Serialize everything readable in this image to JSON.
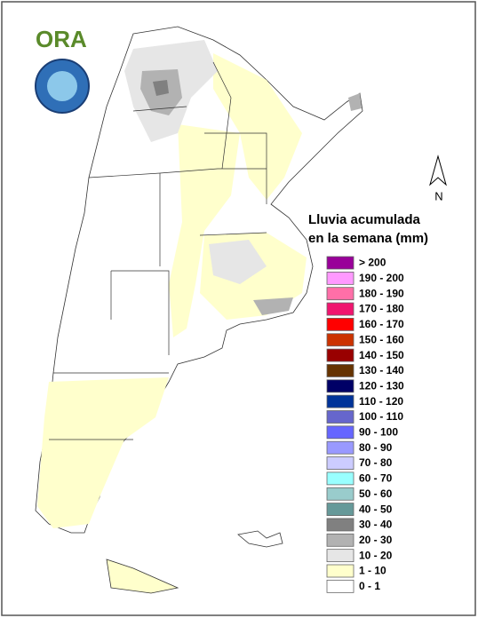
{
  "logo": "ORA",
  "north": "N",
  "legend": {
    "title": [
      "Lluvia acumulada",
      "en la semana (mm)"
    ],
    "items": [
      {
        "label": "> 200",
        "color": "#990099"
      },
      {
        "label": "190 - 200",
        "color": "#ff99ff"
      },
      {
        "label": "180 - 190",
        "color": "#ff6fa8"
      },
      {
        "label": "170 - 180",
        "color": "#f0156f"
      },
      {
        "label": "160 - 170",
        "color": "#ff0000"
      },
      {
        "label": "150 - 160",
        "color": "#cc3300"
      },
      {
        "label": "140 - 150",
        "color": "#990000"
      },
      {
        "label": "130 - 140",
        "color": "#663300"
      },
      {
        "label": "120 - 130",
        "color": "#000066"
      },
      {
        "label": "110 - 120",
        "color": "#003399"
      },
      {
        "label": "100 - 110",
        "color": "#6666cc"
      },
      {
        "label": "90 - 100",
        "color": "#6666ff"
      },
      {
        "label": "80 - 90",
        "color": "#9999ff"
      },
      {
        "label": "70 - 80",
        "color": "#ccccff"
      },
      {
        "label": "60 - 70",
        "color": "#99ffff"
      },
      {
        "label": "50 - 60",
        "color": "#99cccc"
      },
      {
        "label": "40 - 50",
        "color": "#669999"
      },
      {
        "label": "30 - 40",
        "color": "#808080"
      },
      {
        "label": "20 - 30",
        "color": "#b2b2b2"
      },
      {
        "label": "10 - 20",
        "color": "#e6e6e6"
      },
      {
        "label": "1 - 10",
        "color": "#ffffcc"
      },
      {
        "label": "0 - 1",
        "color": "#ffffff"
      }
    ]
  }
}
